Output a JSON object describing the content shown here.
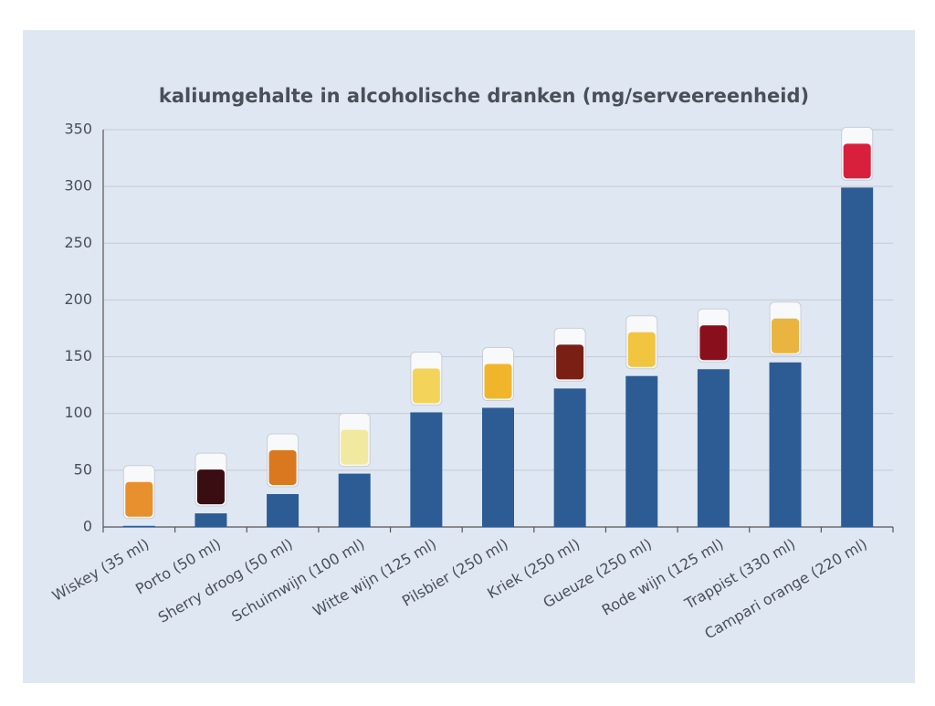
{
  "chart_data": {
    "type": "bar",
    "title": "kaliumgehalte in alcoholische dranken (mg/serveereenheid)",
    "categories": [
      "Wiskey (35 ml)",
      "Porto (50 ml)",
      "Sherry droog (50 ml)",
      "Schuimwijn (100 ml)",
      "Witte wijn (125 ml)",
      "Pilsbier (250 ml)",
      "Kriek (250 ml)",
      "Gueuze (250 ml)",
      "Rode wijn (125 ml)",
      "Trappist (330 ml)",
      "Campari orange (220 ml)"
    ],
    "values": [
      1,
      12,
      29,
      47,
      101,
      105,
      122,
      133,
      139,
      145,
      299
    ],
    "color": "#2d5c95",
    "ylim": [
      0,
      350
    ],
    "yticks": [
      0,
      50,
      100,
      150,
      200,
      250,
      300,
      350
    ],
    "grid": true
  }
}
